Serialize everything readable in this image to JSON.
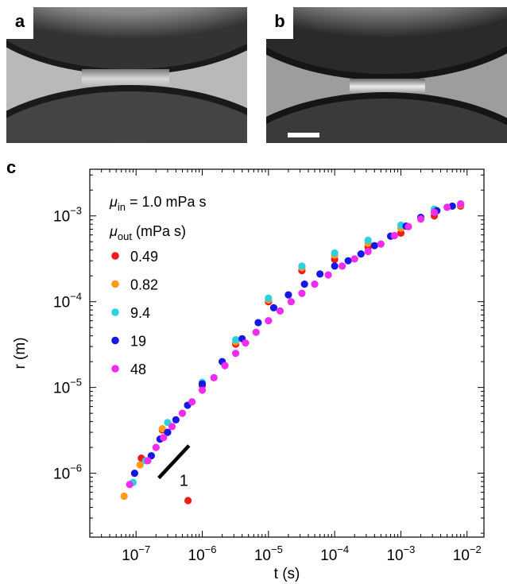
{
  "panels": {
    "a": "a",
    "b": "b",
    "c": "c"
  },
  "chart_data": {
    "type": "scatter",
    "xscale": "log",
    "yscale": "log",
    "xlim": [
      2e-08,
      0.018
    ],
    "ylim": [
      1.8e-07,
      0.0035
    ],
    "xlabel": "t (s)",
    "ylabel": "r (m)",
    "x_ticks": [
      {
        "value": 1e-07,
        "base": "10",
        "exp": "−7"
      },
      {
        "value": 1e-06,
        "base": "10",
        "exp": "−6"
      },
      {
        "value": 1e-05,
        "base": "10",
        "exp": "−5"
      },
      {
        "value": 0.0001,
        "base": "10",
        "exp": "−4"
      },
      {
        "value": 0.001,
        "base": "10",
        "exp": "−3"
      },
      {
        "value": 0.01,
        "base": "10",
        "exp": "−2"
      }
    ],
    "y_ticks": [
      {
        "value": 1e-06,
        "base": "10",
        "exp": "−6"
      },
      {
        "value": 1e-05,
        "base": "10",
        "exp": "−5"
      },
      {
        "value": 0.0001,
        "base": "10",
        "exp": "−4"
      },
      {
        "value": 0.001,
        "base": "10",
        "exp": "−3"
      }
    ],
    "annotation_mu_in": {
      "symbol": "μ",
      "sub": "in",
      "text": " = 1.0 mPa s"
    },
    "legend_title": {
      "symbol": "μ",
      "sub": "out",
      "text": " (mPa s)"
    },
    "legend_placement": "top-left",
    "slope_label": "1",
    "slope_line": {
      "x": [
        2.2e-07,
        6.3e-07
      ],
      "y": [
        8.8e-07,
        2.1e-06
      ]
    },
    "series": [
      {
        "name": "0.49",
        "color": "#ee1c1c",
        "x": [
          6.1e-07,
          1.2e-07,
          2.5e-07,
          1e-06,
          3.2e-06,
          1e-05,
          3.2e-05,
          0.0001,
          0.00032,
          0.001,
          0.0032,
          0.008
        ],
        "y": [
          4.8e-07,
          1.5e-06,
          3.2e-06,
          1.05e-05,
          3.2e-05,
          0.0001,
          0.00023,
          0.00031,
          0.00043,
          0.00063,
          0.001,
          0.0013
        ]
      },
      {
        "name": "0.82",
        "color": "#ff9a1a",
        "x": [
          6.6e-08,
          1.15e-07,
          2.5e-07,
          1e-06,
          3.2e-06,
          1e-05,
          3.2e-05,
          0.0001,
          0.00032,
          0.001,
          0.0032,
          0.008
        ],
        "y": [
          5.4e-07,
          1.25e-06,
          3.3e-06,
          1.1e-05,
          3.4e-05,
          0.000105,
          0.00025,
          0.00035,
          0.00048,
          0.00072,
          0.00115,
          0.00135
        ]
      },
      {
        "name": "9.4",
        "color": "#2dd0e0",
        "x": [
          9e-08,
          1.4e-07,
          3e-07,
          1e-06,
          3.2e-06,
          1e-05,
          3.2e-05,
          0.0001,
          0.00032,
          0.001,
          0.0032,
          0.008
        ],
        "y": [
          7.8e-07,
          1.4e-06,
          3.9e-06,
          1.15e-05,
          3.6e-05,
          0.00011,
          0.00026,
          0.00037,
          0.00052,
          0.00078,
          0.0012,
          0.00138
        ]
      },
      {
        "name": "19",
        "color": "#1818e6",
        "x": [
          9.5e-08,
          1.7e-07,
          2.3e-07,
          3e-07,
          4e-07,
          6e-07,
          1e-06,
          2e-06,
          4e-06,
          7e-06,
          1.2e-05,
          2e-05,
          3.5e-05,
          6e-05,
          0.0001,
          0.00016,
          0.00025,
          0.0004,
          0.0007,
          0.0012,
          0.002,
          0.0035,
          0.006
        ],
        "y": [
          1e-06,
          1.6e-06,
          2.5e-06,
          3e-06,
          4.2e-06,
          6.2e-06,
          1.1e-05,
          2e-05,
          3.7e-05,
          5.7e-05,
          8.5e-05,
          0.00012,
          0.00016,
          0.00021,
          0.00026,
          0.0003,
          0.00036,
          0.00045,
          0.00058,
          0.00076,
          0.00096,
          0.00115,
          0.0013
        ]
      },
      {
        "name": "48",
        "color": "#f02cf0",
        "x": [
          8e-08,
          1.5e-07,
          2e-07,
          2.6e-07,
          3.5e-07,
          5e-07,
          7e-07,
          1e-06,
          1.5e-06,
          2.2e-06,
          3.2e-06,
          4.5e-06,
          6.5e-06,
          1e-05,
          1.5e-05,
          2.2e-05,
          3.2e-05,
          5e-05,
          8e-05,
          0.00013,
          0.0002,
          0.00032,
          0.0005,
          0.0008,
          0.0013,
          0.002,
          0.0032,
          0.005,
          0.008
        ],
        "y": [
          7.4e-07,
          1.4e-06,
          2e-06,
          2.6e-06,
          3.5e-06,
          5e-06,
          6.8e-06,
          9.3e-06,
          1.3e-05,
          1.8e-05,
          2.5e-05,
          3.3e-05,
          4.4e-05,
          6e-05,
          7.8e-05,
          0.0001,
          0.000125,
          0.00016,
          0.000205,
          0.00026,
          0.000315,
          0.000385,
          0.00047,
          0.00059,
          0.00075,
          0.00092,
          0.0011,
          0.00126,
          0.00138
        ]
      }
    ]
  }
}
